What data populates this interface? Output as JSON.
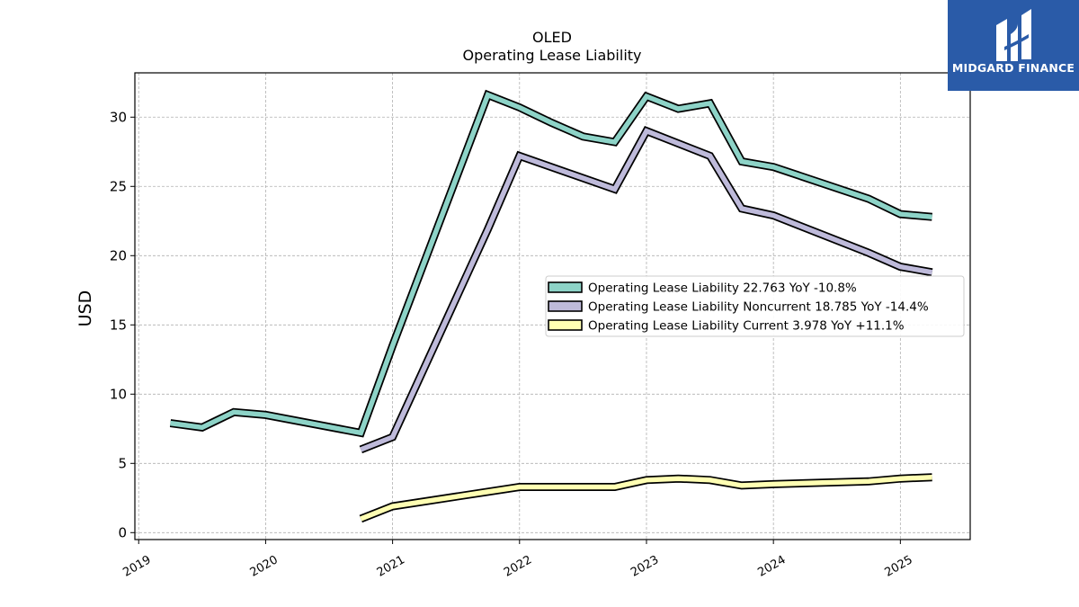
{
  "chart_data": {
    "type": "line",
    "title": "OLED",
    "subtitle": "Operating Lease Liability",
    "ylabel": "USD",
    "xlabel": "",
    "xlim": [
      2018.97,
      2025.55
    ],
    "ylim": [
      -0.5,
      33.2
    ],
    "yticks": [
      0,
      5,
      10,
      15,
      20,
      25,
      30
    ],
    "xticks": [
      2019,
      2020,
      2021,
      2022,
      2023,
      2024,
      2025
    ],
    "xtick_labels": [
      "2019",
      "2020",
      "2021",
      "2022",
      "2023",
      "2024",
      "2025"
    ],
    "grid": true,
    "legend_position": "center-right",
    "series": [
      {
        "name": "Operating Lease Liability  22.763 YoY -10.8%",
        "color": "#8dd3c7",
        "x": [
          2019.25,
          2019.5,
          2019.75,
          2020.0,
          2020.75,
          2021.0,
          2021.75,
          2022.0,
          2022.25,
          2022.5,
          2022.75,
          2023.0,
          2023.25,
          2023.5,
          2023.75,
          2024.0,
          2024.75,
          2025.0,
          2025.25
        ],
        "y": [
          7.9,
          7.6,
          8.7,
          8.5,
          7.2,
          13.5,
          31.6,
          30.7,
          29.6,
          28.6,
          28.2,
          31.5,
          30.6,
          31.0,
          26.8,
          26.4,
          24.1,
          23.0,
          22.8
        ]
      },
      {
        "name": "Operating Lease Liability Noncurrent  18.785 YoY -14.4%",
        "color": "#bebada",
        "x": [
          2020.75,
          2021.0,
          2021.75,
          2022.0,
          2022.75,
          2023.0,
          2023.5,
          2023.75,
          2024.0,
          2024.75,
          2025.0,
          2025.25
        ],
        "y": [
          6.0,
          6.9,
          21.9,
          27.2,
          24.8,
          29.0,
          27.2,
          23.4,
          22.9,
          20.2,
          19.2,
          18.8
        ]
      },
      {
        "name": "Operating Lease Liability Current  3.978 YoY +11.1%",
        "color": "#ffffb3",
        "x": [
          2020.75,
          2021.0,
          2022.0,
          2022.75,
          2023.0,
          2023.25,
          2023.5,
          2023.75,
          2024.0,
          2024.75,
          2025.0,
          2025.25
        ],
        "y": [
          1.0,
          1.9,
          3.3,
          3.3,
          3.8,
          3.9,
          3.8,
          3.4,
          3.5,
          3.7,
          3.9,
          4.0
        ]
      }
    ]
  },
  "logo": {
    "text": "MIDGARD FINANCE",
    "color": "#2a5ba8"
  }
}
